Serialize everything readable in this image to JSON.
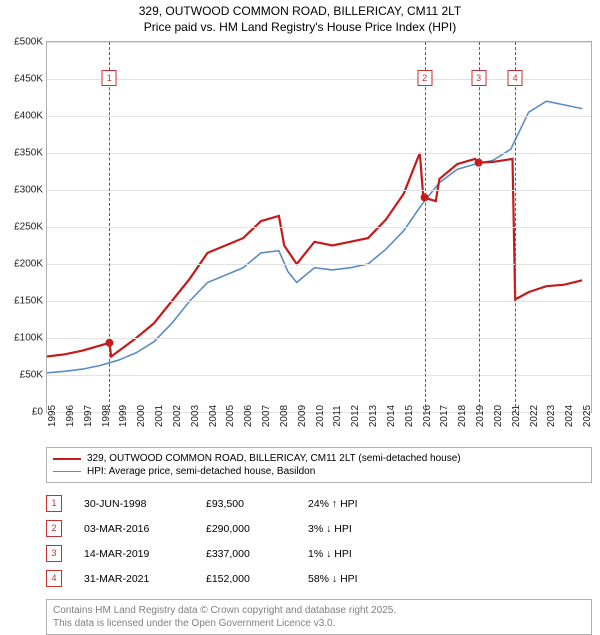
{
  "title": {
    "line1": "329, OUTWOOD COMMON ROAD, BILLERICAY, CM11 2LT",
    "line2": "Price paid vs. HM Land Registry's House Price Index (HPI)"
  },
  "chart": {
    "type": "line",
    "background_color": "#ffffff",
    "grid_color": "#e2e2e2",
    "border_color": "#b0b0b0",
    "ylim": [
      0,
      500000
    ],
    "ytick_step": 50000,
    "yticks": [
      "£0",
      "£50K",
      "£100K",
      "£150K",
      "£200K",
      "£250K",
      "£300K",
      "£350K",
      "£400K",
      "£450K",
      "£500K"
    ],
    "xlim": [
      1995,
      2025.5
    ],
    "xticks": [
      1995,
      1996,
      1997,
      1998,
      1999,
      2000,
      2001,
      2002,
      2003,
      2004,
      2005,
      2006,
      2007,
      2008,
      2009,
      2010,
      2011,
      2012,
      2013,
      2014,
      2015,
      2016,
      2017,
      2018,
      2019,
      2020,
      2021,
      2022,
      2023,
      2024,
      2025
    ],
    "label_fontsize": 10,
    "series": {
      "paid": {
        "label": "329, OUTWOOD COMMON ROAD, BILLERICAY, CM11 2LT (semi-detached house)",
        "color": "#c61a1a",
        "width": 2.2,
        "data": [
          [
            1995,
            75000
          ],
          [
            1996,
            78000
          ],
          [
            1997,
            83000
          ],
          [
            1998,
            90000
          ],
          [
            1998.5,
            93500
          ],
          [
            1998.6,
            75000
          ],
          [
            1999,
            82000
          ],
          [
            2000,
            100000
          ],
          [
            2001,
            120000
          ],
          [
            2002,
            150000
          ],
          [
            2003,
            180000
          ],
          [
            2004,
            215000
          ],
          [
            2005,
            225000
          ],
          [
            2006,
            235000
          ],
          [
            2007,
            258000
          ],
          [
            2008,
            265000
          ],
          [
            2008.3,
            225000
          ],
          [
            2009,
            200000
          ],
          [
            2010,
            230000
          ],
          [
            2011,
            225000
          ],
          [
            2012,
            230000
          ],
          [
            2013,
            235000
          ],
          [
            2014,
            260000
          ],
          [
            2015,
            295000
          ],
          [
            2015.9,
            350000
          ],
          [
            2016.1,
            290000
          ],
          [
            2016.8,
            285000
          ],
          [
            2017,
            315000
          ],
          [
            2018,
            335000
          ],
          [
            2019,
            342000
          ],
          [
            2019.2,
            337000
          ],
          [
            2020,
            338000
          ],
          [
            2021.1,
            342000
          ],
          [
            2021.25,
            152000
          ],
          [
            2022,
            162000
          ],
          [
            2023,
            170000
          ],
          [
            2024,
            172000
          ],
          [
            2025,
            178000
          ]
        ]
      },
      "hpi": {
        "label": "HPI: Average price, semi-detached house, Basildon",
        "color": "#5b8bc6",
        "width": 1.6,
        "data": [
          [
            1995,
            53000
          ],
          [
            1996,
            55000
          ],
          [
            1997,
            58000
          ],
          [
            1998,
            63000
          ],
          [
            1999,
            70000
          ],
          [
            2000,
            80000
          ],
          [
            2001,
            95000
          ],
          [
            2002,
            120000
          ],
          [
            2003,
            150000
          ],
          [
            2004,
            175000
          ],
          [
            2005,
            185000
          ],
          [
            2006,
            195000
          ],
          [
            2007,
            215000
          ],
          [
            2008,
            218000
          ],
          [
            2008.5,
            190000
          ],
          [
            2009,
            175000
          ],
          [
            2010,
            195000
          ],
          [
            2011,
            192000
          ],
          [
            2012,
            195000
          ],
          [
            2013,
            200000
          ],
          [
            2014,
            220000
          ],
          [
            2015,
            245000
          ],
          [
            2016,
            280000
          ],
          [
            2017,
            310000
          ],
          [
            2018,
            328000
          ],
          [
            2019,
            335000
          ],
          [
            2020,
            340000
          ],
          [
            2021,
            355000
          ],
          [
            2022,
            405000
          ],
          [
            2023,
            420000
          ],
          [
            2024,
            415000
          ],
          [
            2025,
            410000
          ]
        ]
      }
    },
    "markers": [
      {
        "n": "1",
        "x": 1998.5,
        "y": 93500,
        "dot": true,
        "label_top": 28
      },
      {
        "n": "2",
        "x": 2016.17,
        "y": 290000,
        "dot": true,
        "label_top": 28
      },
      {
        "n": "3",
        "x": 2019.2,
        "y": 337000,
        "dot": true,
        "label_top": 28
      },
      {
        "n": "4",
        "x": 2021.25,
        "y": 152000,
        "dot": false,
        "label_top": 28
      }
    ]
  },
  "legend": {
    "entries": [
      {
        "colorKey": "paid"
      },
      {
        "colorKey": "hpi"
      }
    ]
  },
  "transactions": [
    {
      "n": "1",
      "date": "30-JUN-1998",
      "price": "£93,500",
      "diff": "24% ↑ HPI"
    },
    {
      "n": "2",
      "date": "03-MAR-2016",
      "price": "£290,000",
      "diff": "3% ↓ HPI"
    },
    {
      "n": "3",
      "date": "14-MAR-2019",
      "price": "£337,000",
      "diff": "1% ↓ HPI"
    },
    {
      "n": "4",
      "date": "31-MAR-2021",
      "price": "£152,000",
      "diff": "58% ↓ HPI"
    }
  ],
  "footer": {
    "line1": "Contains HM Land Registry data © Crown copyright and database right 2025.",
    "line2": "This data is licensed under the Open Government Licence v3.0."
  }
}
